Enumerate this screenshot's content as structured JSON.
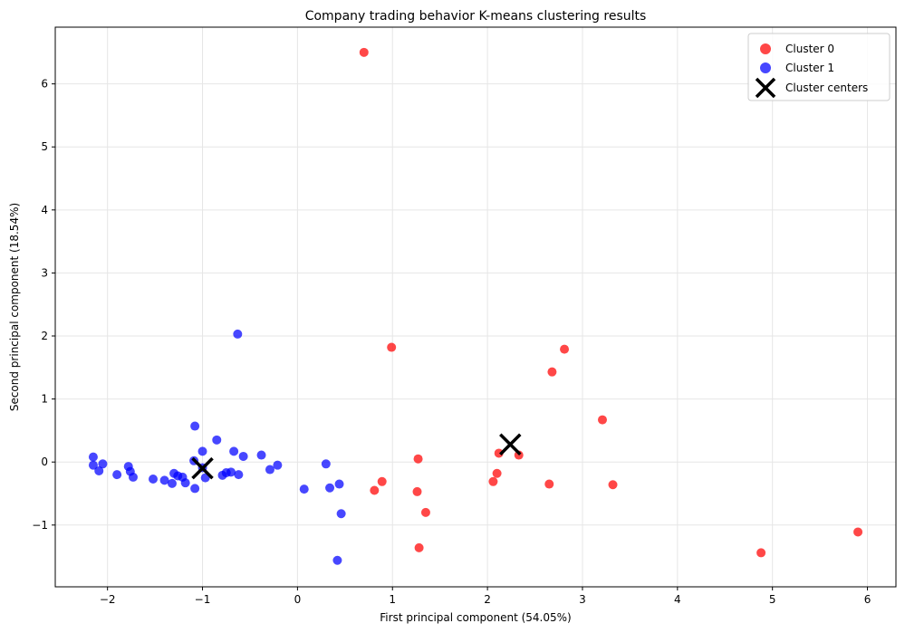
{
  "chart_data": {
    "type": "scatter",
    "title": "Company trading behavior K-means clustering results",
    "xlabel": "First principal component (54.05%)",
    "ylabel": "Second principal component (18.54%)",
    "xlim": [
      -2.55,
      6.3
    ],
    "ylim": [
      -1.98,
      6.9
    ],
    "xticks": [
      -2,
      -1,
      0,
      1,
      2,
      3,
      4,
      5,
      6
    ],
    "yticks": [
      -1,
      0,
      1,
      2,
      3,
      4,
      5,
      6
    ],
    "grid": true,
    "legend_position": "top-right",
    "colors": {
      "cluster0": "#ff0000",
      "cluster1": "#0000ff",
      "centers": "#000000"
    },
    "series": [
      {
        "name": "Cluster 0",
        "points": [
          [
            0.7,
            6.5
          ],
          [
            0.99,
            1.82
          ],
          [
            2.81,
            1.79
          ],
          [
            2.68,
            1.43
          ],
          [
            3.21,
            0.67
          ],
          [
            1.27,
            0.05
          ],
          [
            2.12,
            0.14
          ],
          [
            2.33,
            0.11
          ],
          [
            2.1,
            -0.18
          ],
          [
            2.06,
            -0.31
          ],
          [
            0.89,
            -0.31
          ],
          [
            0.81,
            -0.45
          ],
          [
            1.26,
            -0.47
          ],
          [
            2.65,
            -0.35
          ],
          [
            3.32,
            -0.36
          ],
          [
            1.35,
            -0.8
          ],
          [
            1.28,
            -1.36
          ],
          [
            4.88,
            -1.44
          ],
          [
            5.9,
            -1.11
          ]
        ]
      },
      {
        "name": "Cluster 1",
        "points": [
          [
            -0.63,
            2.03
          ],
          [
            -1.08,
            0.57
          ],
          [
            -0.85,
            0.35
          ],
          [
            -0.67,
            0.17
          ],
          [
            -1.0,
            0.17
          ],
          [
            -0.38,
            0.11
          ],
          [
            -0.57,
            0.09
          ],
          [
            -2.15,
            0.08
          ],
          [
            -2.15,
            -0.05
          ],
          [
            -2.05,
            -0.03
          ],
          [
            -2.09,
            -0.14
          ],
          [
            -1.9,
            -0.2
          ],
          [
            -1.78,
            -0.07
          ],
          [
            -1.76,
            -0.15
          ],
          [
            -1.73,
            -0.24
          ],
          [
            -1.52,
            -0.27
          ],
          [
            -1.4,
            -0.29
          ],
          [
            -1.32,
            -0.34
          ],
          [
            -1.3,
            -0.18
          ],
          [
            -1.26,
            -0.22
          ],
          [
            -1.21,
            -0.24
          ],
          [
            -1.18,
            -0.33
          ],
          [
            -1.09,
            0.02
          ],
          [
            -1.08,
            -0.42
          ],
          [
            -1.0,
            -0.09
          ],
          [
            -0.97,
            -0.25
          ],
          [
            -0.79,
            -0.21
          ],
          [
            -0.75,
            -0.17
          ],
          [
            -0.7,
            -0.16
          ],
          [
            -0.62,
            -0.2
          ],
          [
            -0.29,
            -0.12
          ],
          [
            -0.21,
            -0.05
          ],
          [
            0.07,
            -0.43
          ],
          [
            0.3,
            -0.03
          ],
          [
            0.34,
            -0.41
          ],
          [
            0.44,
            -0.35
          ],
          [
            0.46,
            -0.82
          ],
          [
            0.42,
            -1.56
          ]
        ]
      },
      {
        "name": "Cluster centers",
        "points": [
          [
            -1.0,
            -0.1
          ],
          [
            2.24,
            0.28
          ]
        ]
      }
    ]
  }
}
